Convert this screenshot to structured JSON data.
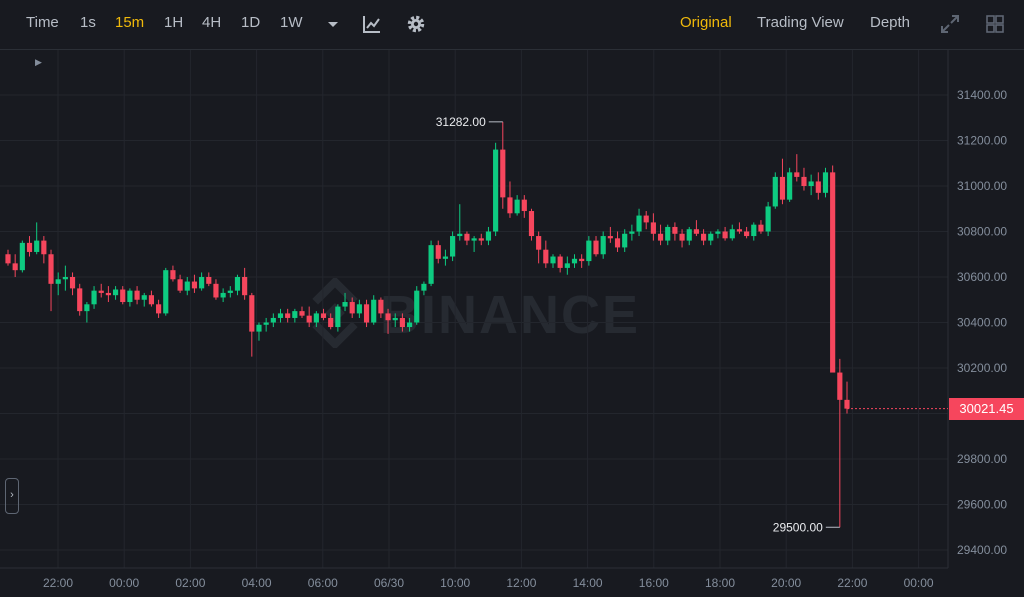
{
  "toolbar": {
    "left": [
      {
        "label": "Time",
        "active": false
      },
      {
        "label": "1s",
        "active": false
      },
      {
        "label": "15m",
        "active": true
      },
      {
        "label": "1H",
        "active": false
      },
      {
        "label": "4H",
        "active": false
      },
      {
        "label": "1D",
        "active": false
      },
      {
        "label": "1W",
        "active": false
      }
    ],
    "right": [
      {
        "label": "Original",
        "active": true
      },
      {
        "label": "Trading View",
        "active": false
      },
      {
        "label": "Depth",
        "active": false
      }
    ],
    "icons": [
      "dropdown-caret-icon",
      "indicators-icon",
      "settings-gear-icon",
      "fullscreen-icon",
      "grid-layout-icon"
    ],
    "accent_color": "#f0b90b"
  },
  "watermark": "BINANCE",
  "price_badge": "30021.45",
  "colors": {
    "up": "#0ecb81",
    "down": "#f6465d",
    "background": "#181a20",
    "grid": "#23262d"
  },
  "chart_data": {
    "type": "candlestick",
    "interval": "15m",
    "y_ticks": [
      "31400.00",
      "31200.00",
      "31000.00",
      "30800.00",
      "30600.00",
      "30400.00",
      "30200.00",
      "30000.00",
      "29800.00",
      "29600.00",
      "29400.00"
    ],
    "x_ticks": [
      "22:00",
      "00:00",
      "02:00",
      "04:00",
      "06:00",
      "06/30",
      "10:00",
      "12:00",
      "14:00",
      "16:00",
      "18:00",
      "20:00",
      "22:00",
      "00:00"
    ],
    "ylim": [
      29300,
      31520
    ],
    "last_price": 30021.45,
    "annotations": {
      "high": "31282.00",
      "low": "29500.00"
    },
    "candles": [
      [
        30700,
        30720,
        30650,
        30660
      ],
      [
        30660,
        30700,
        30600,
        30630
      ],
      [
        30630,
        30760,
        30620,
        30750
      ],
      [
        30750,
        30780,
        30690,
        30710
      ],
      [
        30710,
        30840,
        30700,
        30760
      ],
      [
        30760,
        30780,
        30660,
        30700
      ],
      [
        30700,
        30720,
        30450,
        30570
      ],
      [
        30570,
        30620,
        30520,
        30590
      ],
      [
        30590,
        30650,
        30540,
        30600
      ],
      [
        30600,
        30620,
        30520,
        30550
      ],
      [
        30550,
        30570,
        30430,
        30450
      ],
      [
        30450,
        30490,
        30400,
        30480
      ],
      [
        30480,
        30560,
        30460,
        30540
      ],
      [
        30540,
        30570,
        30510,
        30530
      ],
      [
        30530,
        30560,
        30490,
        30520
      ],
      [
        30520,
        30560,
        30500,
        30545
      ],
      [
        30545,
        30560,
        30480,
        30490
      ],
      [
        30490,
        30550,
        30470,
        30540
      ],
      [
        30540,
        30560,
        30480,
        30500
      ],
      [
        30500,
        30530,
        30470,
        30520
      ],
      [
        30520,
        30540,
        30470,
        30480
      ],
      [
        30480,
        30500,
        30420,
        30440
      ],
      [
        30440,
        30640,
        30430,
        30630
      ],
      [
        30630,
        30650,
        30580,
        30590
      ],
      [
        30590,
        30610,
        30530,
        30540
      ],
      [
        30540,
        30600,
        30520,
        30580
      ],
      [
        30580,
        30610,
        30530,
        30550
      ],
      [
        30550,
        30620,
        30540,
        30600
      ],
      [
        30600,
        30620,
        30560,
        30570
      ],
      [
        30570,
        30590,
        30500,
        30510
      ],
      [
        30510,
        30550,
        30490,
        30530
      ],
      [
        30530,
        30560,
        30510,
        30540
      ],
      [
        30540,
        30610,
        30520,
        30600
      ],
      [
        30600,
        30640,
        30500,
        30520
      ],
      [
        30520,
        30530,
        30250,
        30360
      ],
      [
        30360,
        30400,
        30320,
        30390
      ],
      [
        30390,
        30420,
        30360,
        30400
      ],
      [
        30400,
        30440,
        30380,
        30420
      ],
      [
        30420,
        30460,
        30400,
        30440
      ],
      [
        30440,
        30460,
        30400,
        30420
      ],
      [
        30420,
        30460,
        30400,
        30450
      ],
      [
        30450,
        30470,
        30420,
        30430
      ],
      [
        30430,
        30470,
        30380,
        30400
      ],
      [
        30400,
        30450,
        30380,
        30440
      ],
      [
        30440,
        30460,
        30410,
        30420
      ],
      [
        30420,
        30440,
        30370,
        30380
      ],
      [
        30380,
        30480,
        30360,
        30470
      ],
      [
        30470,
        30530,
        30450,
        30490
      ],
      [
        30490,
        30510,
        30420,
        30440
      ],
      [
        30440,
        30500,
        30420,
        30480
      ],
      [
        30480,
        30500,
        30380,
        30400
      ],
      [
        30400,
        30520,
        30390,
        30500
      ],
      [
        30500,
        30510,
        30420,
        30440
      ],
      [
        30440,
        30460,
        30350,
        30410
      ],
      [
        30410,
        30440,
        30380,
        30420
      ],
      [
        30420,
        30440,
        30360,
        30380
      ],
      [
        30380,
        30420,
        30360,
        30400
      ],
      [
        30400,
        30560,
        30390,
        30540
      ],
      [
        30540,
        30580,
        30520,
        30570
      ],
      [
        30570,
        30760,
        30560,
        30740
      ],
      [
        30740,
        30760,
        30660,
        30680
      ],
      [
        30680,
        30720,
        30650,
        30690
      ],
      [
        30690,
        30800,
        30670,
        30780
      ],
      [
        30780,
        30920,
        30760,
        30790
      ],
      [
        30790,
        30800,
        30740,
        30760
      ],
      [
        30760,
        30780,
        30710,
        30770
      ],
      [
        30770,
        30790,
        30740,
        30760
      ],
      [
        30760,
        30820,
        30740,
        30800
      ],
      [
        30800,
        31190,
        30780,
        31160
      ],
      [
        31160,
        31282,
        30900,
        30950
      ],
      [
        30950,
        31020,
        30860,
        30880
      ],
      [
        30880,
        30960,
        30870,
        30940
      ],
      [
        30940,
        30960,
        30860,
        30890
      ],
      [
        30890,
        30900,
        30760,
        30780
      ],
      [
        30780,
        30800,
        30660,
        30720
      ],
      [
        30720,
        30760,
        30640,
        30660
      ],
      [
        30660,
        30700,
        30640,
        30690
      ],
      [
        30690,
        30700,
        30620,
        30640
      ],
      [
        30640,
        30690,
        30610,
        30660
      ],
      [
        30660,
        30700,
        30640,
        30680
      ],
      [
        30680,
        30700,
        30640,
        30670
      ],
      [
        30670,
        30780,
        30650,
        30760
      ],
      [
        30760,
        30780,
        30690,
        30700
      ],
      [
        30700,
        30800,
        30680,
        30780
      ],
      [
        30780,
        30820,
        30750,
        30770
      ],
      [
        30770,
        30800,
        30710,
        30730
      ],
      [
        30730,
        30810,
        30710,
        30790
      ],
      [
        30790,
        30830,
        30760,
        30800
      ],
      [
        30800,
        30900,
        30780,
        30870
      ],
      [
        30870,
        30890,
        30810,
        30840
      ],
      [
        30840,
        30880,
        30760,
        30790
      ],
      [
        30790,
        30830,
        30740,
        30760
      ],
      [
        30760,
        30830,
        30740,
        30820
      ],
      [
        30820,
        30840,
        30760,
        30790
      ],
      [
        30790,
        30810,
        30730,
        30760
      ],
      [
        30760,
        30820,
        30740,
        30810
      ],
      [
        30810,
        30850,
        30780,
        30790
      ],
      [
        30790,
        30810,
        30740,
        30760
      ],
      [
        30760,
        30800,
        30740,
        30790
      ],
      [
        30790,
        30810,
        30770,
        30800
      ],
      [
        30800,
        30820,
        30760,
        30770
      ],
      [
        30770,
        30830,
        30760,
        30810
      ],
      [
        30810,
        30840,
        30790,
        30800
      ],
      [
        30800,
        30820,
        30770,
        30780
      ],
      [
        30780,
        30840,
        30760,
        30830
      ],
      [
        30830,
        30850,
        30790,
        30800
      ],
      [
        30800,
        30930,
        30780,
        30910
      ],
      [
        30910,
        31060,
        30900,
        31040
      ],
      [
        31040,
        31120,
        30920,
        30940
      ],
      [
        30940,
        31080,
        30930,
        31060
      ],
      [
        31060,
        31140,
        31020,
        31040
      ],
      [
        31040,
        31080,
        30980,
        31000
      ],
      [
        31000,
        31050,
        30960,
        31020
      ],
      [
        31020,
        31060,
        30940,
        30970
      ],
      [
        30970,
        31080,
        30950,
        31060
      ],
      [
        31060,
        31090,
        30180,
        30180
      ],
      [
        30180,
        30240,
        29500,
        30060
      ],
      [
        30060,
        30140,
        30000,
        30021.45
      ]
    ]
  }
}
